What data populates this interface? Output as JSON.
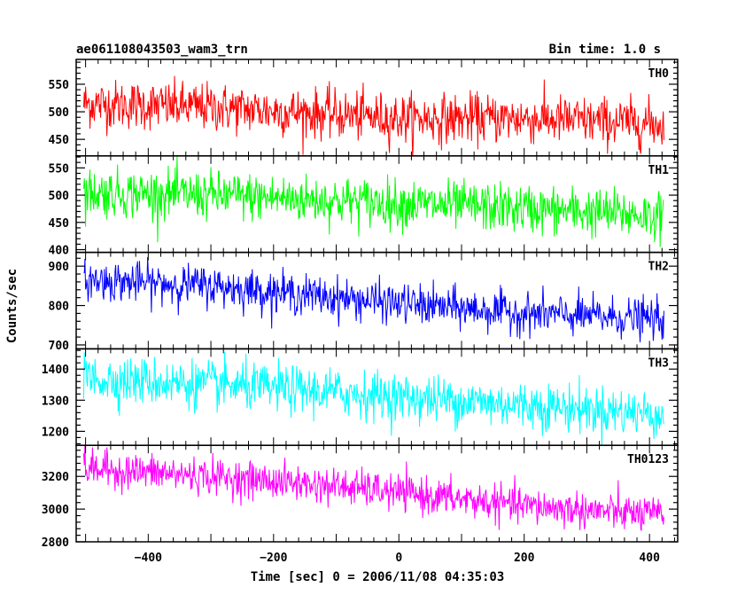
{
  "header": {
    "title": "ae061108043503_wam3_trn",
    "bin_time": "Bin time: 1.0 s"
  },
  "chart_data": {
    "type": "line",
    "title": "ae061108043503_wam3_trn",
    "subtitle": "Bin time: 1.0 s",
    "xlabel": "Time [sec] 0 = 2006/11/08 04:35:03",
    "ylabel": "Counts/sec",
    "xlim": [
      -515,
      445
    ],
    "x_range": [
      -503,
      423
    ],
    "bin_time": 1.0,
    "x_ticks": [
      -400,
      -200,
      0,
      200,
      400
    ],
    "grid": false,
    "legend": "none",
    "series": [
      {
        "name": "TH0",
        "color": "#ff0000",
        "ylim": [
          420,
          595
        ],
        "y_ticks": [
          450,
          500,
          550
        ],
        "trend": [
          [
            -503,
            515
          ],
          [
            -300,
            508
          ],
          [
            -100,
            495
          ],
          [
            0,
            488
          ],
          [
            200,
            488
          ],
          [
            423,
            478
          ]
        ],
        "noise_sd": 22
      },
      {
        "name": "TH1",
        "color": "#00ff00",
        "ylim": [
          395,
          572
        ],
        "y_ticks": [
          400,
          450,
          500,
          550
        ],
        "trend": [
          [
            -503,
            505
          ],
          [
            -300,
            500
          ],
          [
            -100,
            490
          ],
          [
            0,
            485
          ],
          [
            200,
            475
          ],
          [
            423,
            462
          ]
        ],
        "noise_sd": 22
      },
      {
        "name": "TH2",
        "color": "#0000ff",
        "ylim": [
          690,
          935
        ],
        "y_ticks": [
          700,
          800,
          900
        ],
        "trend": [
          [
            -503,
            865
          ],
          [
            -300,
            850
          ],
          [
            -100,
            820
          ],
          [
            0,
            805
          ],
          [
            200,
            780
          ],
          [
            423,
            765
          ]
        ],
        "noise_sd": 25
      },
      {
        "name": "TH3",
        "color": "#00ffff",
        "ylim": [
          1155,
          1465
        ],
        "y_ticks": [
          1200,
          1300,
          1400
        ],
        "trend": [
          [
            -503,
            1370
          ],
          [
            -300,
            1350
          ],
          [
            -100,
            1325
          ],
          [
            0,
            1310
          ],
          [
            200,
            1285
          ],
          [
            423,
            1255
          ]
        ],
        "noise_sd": 38
      },
      {
        "name": "TH0123",
        "color": "#ff00ff",
        "ylim": [
          2800,
          3390
        ],
        "y_ticks": [
          2800,
          3000,
          3200
        ],
        "trend": [
          [
            -503,
            3250
          ],
          [
            -300,
            3200
          ],
          [
            -100,
            3140
          ],
          [
            0,
            3100
          ],
          [
            200,
            3020
          ],
          [
            423,
            2960
          ]
        ],
        "noise_sd": 55
      }
    ]
  }
}
